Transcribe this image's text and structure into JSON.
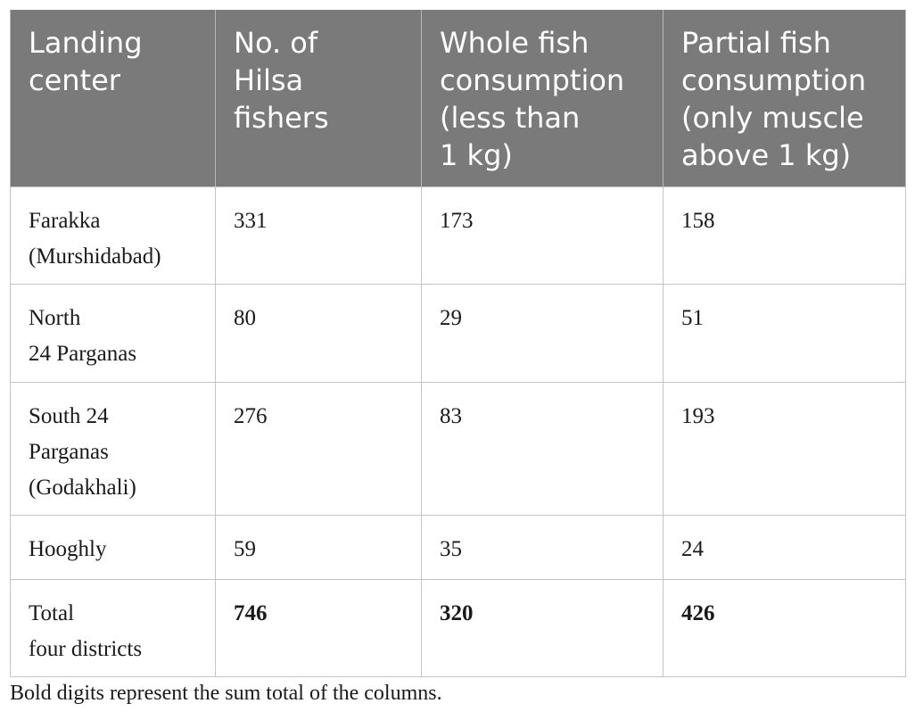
{
  "table": {
    "headers": [
      "Landing\ncenter",
      "No. of\nHilsa\nfishers",
      "Whole fish\nconsumption\n(less than\n1 kg)",
      "Partial fish\nconsumption\n(only muscle\nabove 1 kg)"
    ],
    "rows": [
      [
        "Farakka\n(Murshidabad)",
        "331",
        "173",
        "158"
      ],
      [
        "North\n24 Parganas",
        "80",
        "29",
        "51"
      ],
      [
        "South 24\nParganas\n(Godakhali)",
        "276",
        "83",
        "193"
      ],
      [
        "Hooghly",
        "59",
        "35",
        "24"
      ],
      [
        "Total\nfour districts",
        "746",
        "320",
        "426"
      ]
    ]
  },
  "footnote": "Bold digits represent the sum total of the columns.",
  "colors": {
    "header_bg": "#7a7a7a",
    "header_text": "#ffffff",
    "grid": "#c4c4c4"
  }
}
